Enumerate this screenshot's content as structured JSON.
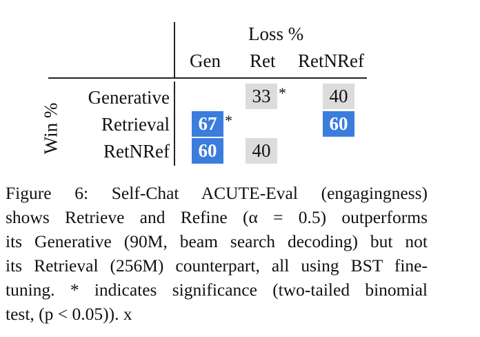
{
  "table": {
    "super_header": "Loss %",
    "row_axis_label": "Win %",
    "columns": [
      "Gen",
      "Ret",
      "RetNRef"
    ],
    "rows": [
      {
        "label": "Generative",
        "cells": [
          "",
          "33",
          "40"
        ],
        "stars": [
          "",
          "*",
          ""
        ]
      },
      {
        "label": "Retrieval",
        "cells": [
          "67",
          "",
          "60"
        ],
        "stars": [
          "*",
          "",
          ""
        ]
      },
      {
        "label": "RetNRef",
        "cells": [
          "60",
          "40",
          ""
        ],
        "stars": [
          "",
          "",
          ""
        ]
      }
    ],
    "colors": {
      "win_highlight": "#3b7ddd",
      "loss_shade": "#dcdcdc"
    }
  },
  "caption": {
    "lines": [
      "Figure 6:  Self-Chat ACUTE-Eval (engagingness)",
      "shows Retrieve and Refine (α = 0.5) outperforms",
      "its Generative (90M, beam search decoding) but not",
      "its Retrieval (256M) counterpart, all using BST fine-",
      "tuning.  * indicates significance (two-tailed binomial",
      "test, (p < 0.05)). x"
    ]
  }
}
